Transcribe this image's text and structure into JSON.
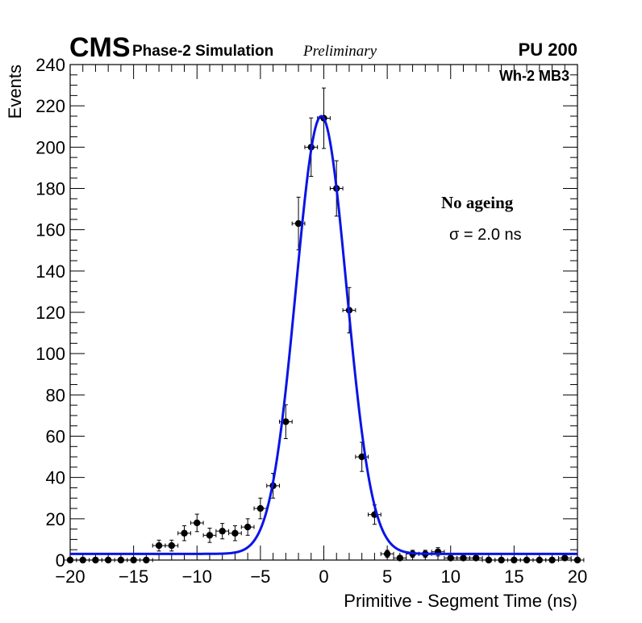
{
  "chart_data": {
    "type": "scatter",
    "experiment_label": "CMS",
    "simulation_label": "Phase-2 Simulation",
    "preliminary_label": "Preliminary",
    "pileup_label": "PU 200",
    "region_label": "Wh-2 MB3",
    "xlabel": "Primitive - Segment Time (ns)",
    "ylabel": "Events",
    "xlim": [
      -20,
      20
    ],
    "ylim": [
      0,
      240
    ],
    "x_ticks": [
      -20,
      -15,
      -10,
      -5,
      0,
      5,
      10,
      15,
      20
    ],
    "x_tick_labels": [
      "−20",
      "−15",
      "−10",
      "−5",
      "0",
      "5",
      "10",
      "15",
      "20"
    ],
    "y_ticks": [
      0,
      20,
      40,
      60,
      80,
      100,
      120,
      140,
      160,
      180,
      200,
      220,
      240
    ],
    "y_tick_labels": [
      "0",
      "20",
      "40",
      "60",
      "80",
      "100",
      "120",
      "140",
      "160",
      "180",
      "200",
      "220",
      "240"
    ],
    "annotation_condition": "No ageing",
    "annotation_sigma": "σ = 2.0 ns",
    "series": [
      {
        "name": "data",
        "bin_half_width": 0.5,
        "x": [
          -20,
          -19,
          -18,
          -17,
          -16,
          -15,
          -14,
          -13,
          -12,
          -11,
          -10,
          -9,
          -8,
          -7,
          -6,
          -5,
          -4,
          -3,
          -2,
          -1,
          0,
          1,
          2,
          3,
          4,
          5,
          6,
          7,
          8,
          9,
          10,
          11,
          12,
          13,
          14,
          15,
          16,
          17,
          18,
          19,
          20
        ],
        "y": [
          0,
          0,
          0,
          0,
          0,
          0,
          0,
          7,
          7,
          13,
          18,
          12,
          14,
          13,
          16,
          25,
          36,
          67,
          163,
          200,
          214,
          180,
          121,
          50,
          22,
          3,
          1,
          3,
          3,
          4,
          1,
          1,
          1,
          0,
          0,
          0,
          0,
          0,
          0,
          1,
          0
        ]
      },
      {
        "name": "fit",
        "model": "gaussian + constant",
        "mean": -0.2,
        "sigma": 2.0,
        "amplitude": 212,
        "constant": 3
      }
    ]
  },
  "colors": {
    "fit": "#0a14e6",
    "marker": "#000000",
    "frame": "#000000"
  }
}
